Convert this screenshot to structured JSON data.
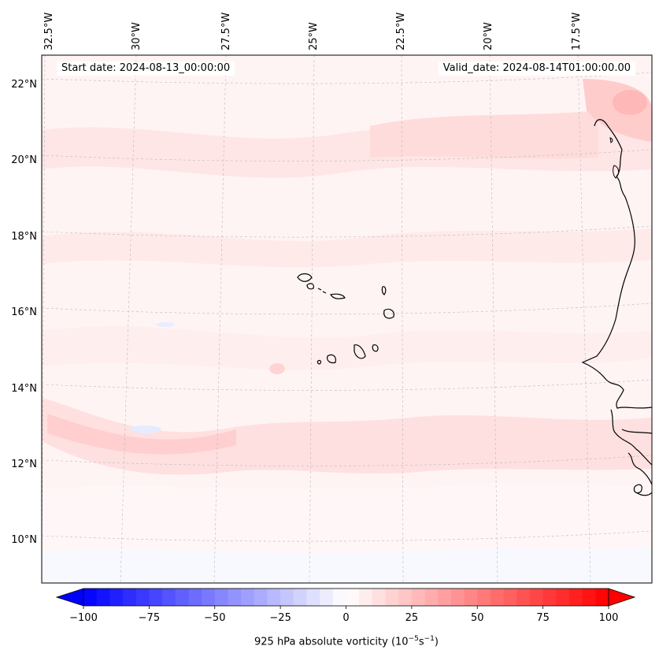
{
  "header": {
    "start_date": "Start date: 2024-08-13_00:00:00",
    "valid_date": "Valid_date: 2024-08-14T01:00:00.00"
  },
  "map": {
    "lon_labels": [
      "32.5°W",
      "30°W",
      "27.5°W",
      "25°W",
      "22.5°W",
      "20°W",
      "17.5°W"
    ],
    "lat_labels": [
      "22°N",
      "20°N",
      "18°N",
      "16°N",
      "14°N",
      "12°N",
      "10°N"
    ],
    "field": "925 hPa absolute vorticity",
    "coastline_color": "#000000",
    "gridline_color": "#b0b0b0"
  },
  "colorbar": {
    "title_text": "925 hPa absolute vorticity (10",
    "title_exp1": "−5",
    "title_mid": "s",
    "title_exp2": "−1",
    "title_close": ")",
    "min": -100,
    "max": 100,
    "levels": 41,
    "tick_labels": [
      "−100",
      "−75",
      "−50",
      "−25",
      "0",
      "25",
      "50",
      "75",
      "100"
    ],
    "colormap": "bwr",
    "negative_color": "#0000ff",
    "positive_color": "#ff0000",
    "center_color": "#ffffff"
  }
}
